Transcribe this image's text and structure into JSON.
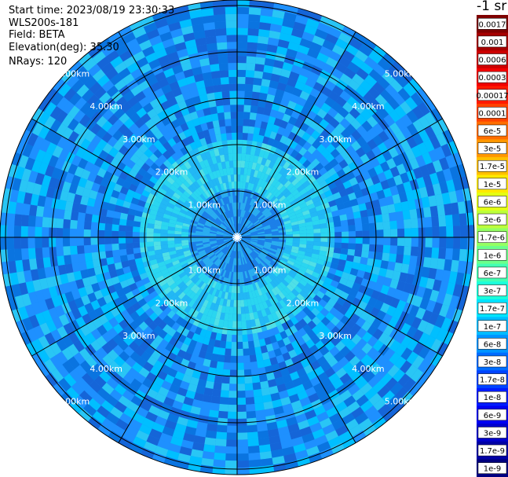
{
  "header": {
    "start_time": "Start time: 2023/08/19 23:30:33",
    "instrument": "WLS200s-181",
    "field": "Field: BETA",
    "elevation": "Elevation(deg): 35.30",
    "nrays": "NRays: 120"
  },
  "chart_data": {
    "type": "heatmap",
    "projection": "polar",
    "rings": [
      "1.00km",
      "2.00km",
      "3.00km",
      "4.00km",
      "5.00km"
    ],
    "ring_values_km": [
      1,
      2,
      3,
      4,
      5
    ],
    "range_max_km": 5.1,
    "radial_line_angles_deg": [
      0,
      30,
      60,
      90,
      120,
      150,
      180,
      210,
      240,
      270,
      300,
      330
    ],
    "nrays": 120,
    "colorbar": {
      "title": "-1 sr",
      "labels": [
        "0.0017",
        "0.001",
        "0.0006",
        "0.0003",
        "0.00017",
        "0.0001",
        "6e-5",
        "3e-5",
        "1.7e-5",
        "1e-5",
        "6e-6",
        "3e-6",
        "1.7e-6",
        "1e-6",
        "6e-7",
        "3e-7",
        "1.7e-7",
        "1e-7",
        "6e-8",
        "3e-8",
        "1.7e-8",
        "1e-8",
        "6e-9",
        "3e-9",
        "1.7e-9",
        "1e-9"
      ],
      "colors": [
        "#7f0000",
        "#a50000",
        "#cc0000",
        "#f20000",
        "#ff1a00",
        "#ff4300",
        "#ff6d00",
        "#ff9700",
        "#ffc000",
        "#ffe900",
        "#e4ff13",
        "#bcff3b",
        "#94ff63",
        "#6bff8b",
        "#43ffb3",
        "#1bffdb",
        "#00e4ff",
        "#00bcff",
        "#0094ff",
        "#006cff",
        "#0044ff",
        "#001cff",
        "#0000f2",
        "#0000cc",
        "#0000a5",
        "#00007f"
      ]
    },
    "field_colors": [
      "#1e90ff",
      "#00bfff",
      "#0a74e0",
      "#29c6f5",
      "#1565d8"
    ]
  }
}
